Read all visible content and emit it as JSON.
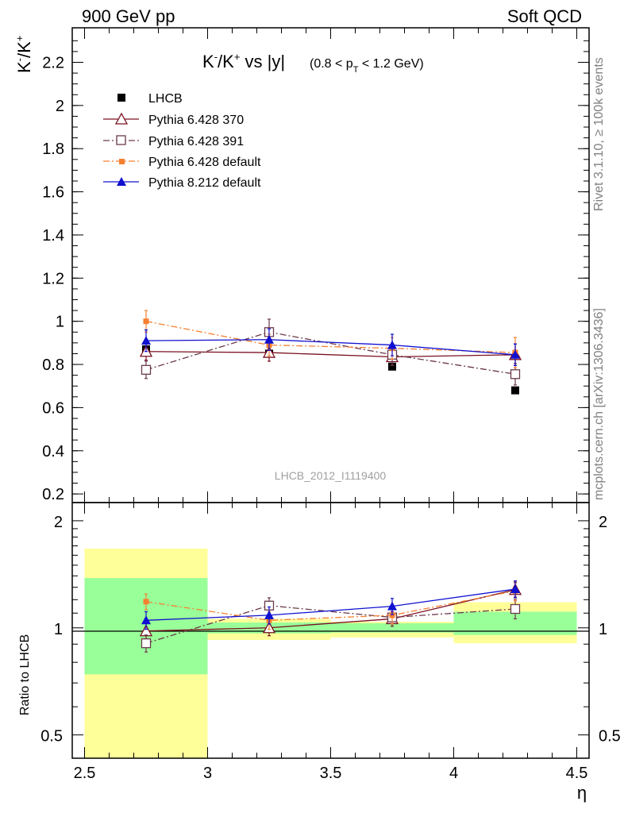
{
  "header": {
    "left_label": "900 GeV pp",
    "right_label": "Soft QCD"
  },
  "side_labels": {
    "rivet": "Rivet 3.1.10, ≥ 100k events",
    "mcplots": "mcplots.cern.ch [arXiv:1306.3436]"
  },
  "colors": {
    "lhcb": "#000000",
    "py6_370": "#7a1020",
    "py6_391": "#6b3a4a",
    "py6_default": "#f58030",
    "py8_default": "#1010d0",
    "band_outer": "#ffff99",
    "band_inner": "#99ff99"
  },
  "chart_data": [
    {
      "type": "line",
      "panel": "main",
      "title_main": "K⁻/K⁺ vs |y|",
      "title_cut": "(0.8 < p",
      "title_cut_sub": "T",
      "title_cut_end": " < 1.2 GeV)",
      "ylabel": "K⁻/K⁺",
      "ylim": [
        0.16,
        2.36
      ],
      "yticks": [
        "0.2",
        "0.4",
        "0.6",
        "0.8",
        "1",
        "1.2",
        "1.4",
        "1.6",
        "1.8",
        "2",
        "2.2"
      ],
      "ytick_values": [
        0.2,
        0.4,
        0.6,
        0.8,
        1.0,
        1.2,
        1.4,
        1.6,
        1.8,
        2.0,
        2.2
      ],
      "xlim": [
        2.45,
        4.55
      ],
      "watermark": "LHCB_2012_I1119400",
      "x": [
        2.75,
        3.25,
        3.75,
        4.25
      ],
      "bin_edges": [
        2.5,
        3.0,
        3.5,
        4.0,
        4.5
      ],
      "series": [
        {
          "name": "LHCB",
          "marker": "filled-square",
          "style": "none",
          "values": [
            0.87,
            0.85,
            0.79,
            0.68
          ],
          "errors": [
            0.01,
            0.01,
            0.01,
            0.01
          ]
        },
        {
          "name": "Pythia 6.428 370",
          "marker": "open-triangle",
          "style": "solid",
          "values": [
            0.86,
            0.855,
            0.835,
            0.845
          ],
          "errors": [
            0.04,
            0.04,
            0.04,
            0.05
          ]
        },
        {
          "name": "Pythia 6.428 391",
          "marker": "open-square",
          "style": "dashdot",
          "values": [
            0.775,
            0.95,
            0.845,
            0.755
          ],
          "errors": [
            0.04,
            0.06,
            0.05,
            0.05
          ]
        },
        {
          "name": "Pythia 6.428 default",
          "marker": "small-filled-square",
          "style": "dashdot",
          "values": [
            1.0,
            0.89,
            0.875,
            0.855
          ],
          "errors": [
            0.05,
            0.05,
            0.05,
            0.07
          ]
        },
        {
          "name": "Pythia 8.212 default",
          "marker": "filled-triangle",
          "style": "solid",
          "values": [
            0.91,
            0.915,
            0.89,
            0.845
          ],
          "errors": [
            0.05,
            0.05,
            0.05,
            0.05
          ]
        }
      ]
    },
    {
      "type": "line",
      "panel": "ratio",
      "ylabel": "Ratio to LHCB",
      "ylim": [
        0.43,
        2.25
      ],
      "yticks": [
        "0.5",
        "1",
        "2"
      ],
      "ytick_values": [
        0.5,
        1.0,
        2.0
      ],
      "xlabel": "η",
      "xticks": [
        "2.5",
        "3",
        "3.5",
        "4",
        "4.5"
      ],
      "xtick_values": [
        2.5,
        3.0,
        3.5,
        4.0,
        4.5
      ],
      "bands": {
        "outer": [
          [
            0.43,
            1.67
          ],
          [
            0.925,
            1.06
          ],
          [
            0.94,
            1.04
          ],
          [
            0.905,
            1.18
          ]
        ],
        "inner": [
          [
            0.74,
            1.38
          ],
          [
            0.965,
            1.035
          ],
          [
            0.97,
            1.03
          ],
          [
            0.955,
            1.11
          ]
        ]
      },
      "series": [
        {
          "name": "Pythia 6.428 370",
          "values": [
            0.98,
            1.0,
            1.06,
            1.28
          ],
          "errors": [
            0.05,
            0.05,
            0.05,
            0.06
          ]
        },
        {
          "name": "Pythia 6.428 391",
          "values": [
            0.905,
            1.155,
            1.07,
            1.13
          ],
          "errors": [
            0.05,
            0.06,
            0.06,
            0.07
          ]
        },
        {
          "name": "Pythia 6.428 default",
          "values": [
            1.185,
            1.05,
            1.085,
            1.27
          ],
          "errors": [
            0.06,
            0.06,
            0.06,
            0.08
          ]
        },
        {
          "name": "Pythia 8.212 default",
          "values": [
            1.05,
            1.085,
            1.15,
            1.285
          ],
          "errors": [
            0.06,
            0.06,
            0.06,
            0.07
          ]
        }
      ]
    }
  ]
}
